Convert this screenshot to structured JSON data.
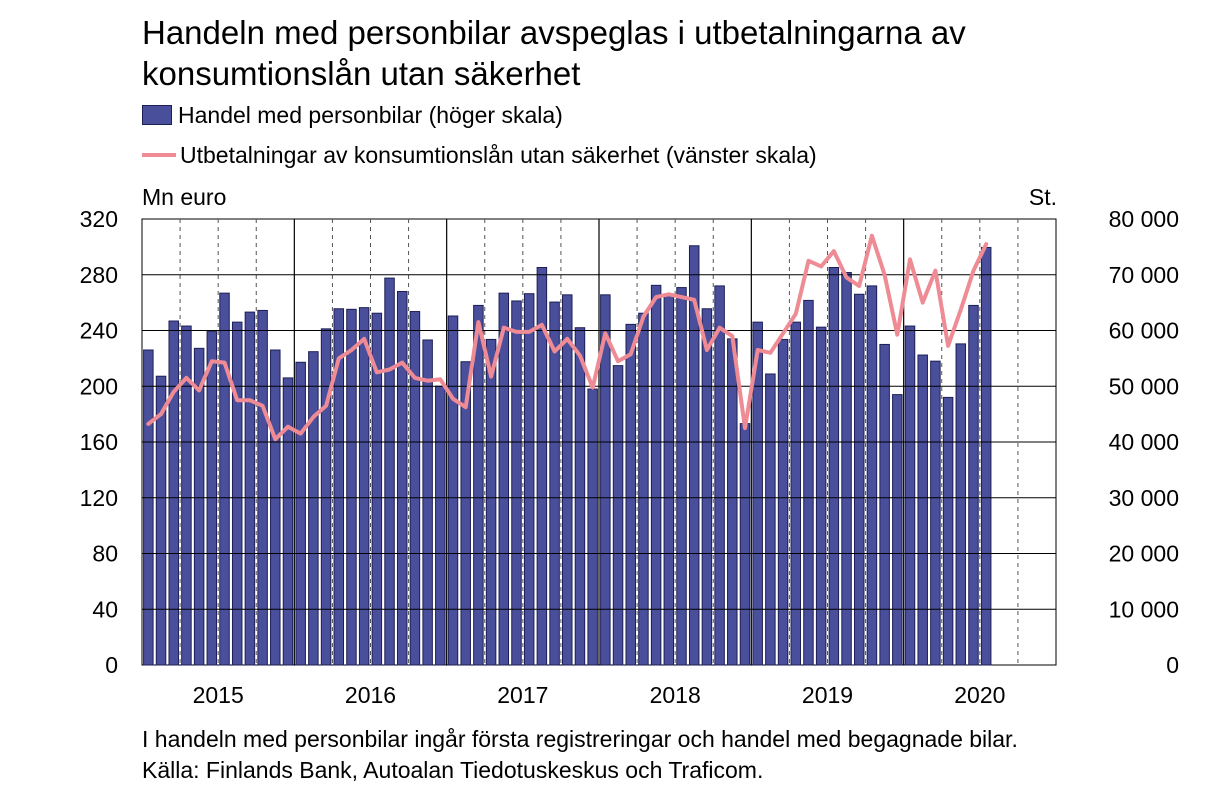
{
  "chart_data": {
    "type": "bar+line",
    "title": "Handeln med personbilar avspeglas i utbetalningarna av konsumtionslån utan säkerhet",
    "legend": [
      {
        "label": "Handel med personbilar (höger skala)",
        "marker": "bar",
        "color": "#4a4f9c"
      },
      {
        "label": "Utbetalningar av konsumtionslån utan säkerhet (vänster skala)",
        "marker": "line",
        "color": "#ef8b94"
      }
    ],
    "left_axis": {
      "unit": "Mn euro",
      "ylim": [
        0,
        320
      ],
      "ticks": [
        "0",
        "40",
        "80",
        "120",
        "160",
        "200",
        "240",
        "280",
        "320"
      ]
    },
    "right_axis": {
      "unit": "St.",
      "ylim": [
        0,
        80000
      ],
      "ticks": [
        "0",
        "10 000",
        "20 000",
        "30 000",
        "40 000",
        "50 000",
        "60 000",
        "70 000",
        "80 000"
      ]
    },
    "x_labels": [
      "2015",
      "2016",
      "2017",
      "2018",
      "2019",
      "2020"
    ],
    "x_range_months": "Jan 2015 – Dec 2020",
    "grid": "horizontal solid, yearly vertical solid, quarterly vertical dashed",
    "series": [
      {
        "name": "Handel med personbilar (höger skala)",
        "axis": "right",
        "type": "bar",
        "unit": "St.",
        "values": [
          56500,
          51800,
          61700,
          60800,
          56800,
          59800,
          66700,
          61500,
          63300,
          63600,
          56500,
          51500,
          54300,
          56200,
          60300,
          63900,
          63800,
          64100,
          63100,
          69400,
          67000,
          63400,
          58300,
          50000,
          62600,
          54400,
          64500,
          58400,
          66700,
          65300,
          66600,
          71300,
          65100,
          66400,
          60500,
          49500,
          66400,
          53700,
          61100,
          63100,
          68100,
          66300,
          67700,
          75200,
          63900,
          68000,
          58500,
          43300,
          61500,
          52200,
          58400,
          61500,
          65400,
          60600,
          71300,
          70400,
          66500,
          68000,
          57500,
          48500,
          60800,
          55600,
          54500,
          48000,
          57600,
          64500,
          74900
        ]
      },
      {
        "name": "Utbetalningar av konsumtionslån utan säkerhet (vänster skala)",
        "axis": "left",
        "type": "line",
        "unit": "Mn euro",
        "values": [
          173,
          180,
          196,
          206,
          197,
          218,
          217,
          190,
          190,
          186,
          162,
          171,
          166,
          178,
          186,
          220,
          226,
          234,
          210,
          212,
          217,
          206,
          204,
          205,
          191,
          185,
          246,
          207,
          242,
          239,
          239,
          244,
          225,
          234,
          222,
          199,
          238,
          218,
          223,
          250,
          264,
          266,
          264,
          262,
          226,
          242,
          236,
          170,
          226,
          224,
          238,
          252,
          290,
          286,
          297,
          278,
          272,
          308,
          280,
          237,
          291,
          260,
          283,
          229,
          255,
          283,
          302
        ]
      }
    ]
  },
  "footnote": {
    "line1": "I handeln med personbilar ingår första registreringar och handel med begagnade bilar.",
    "line2": "Källa: Finlands Bank, Autoalan Tiedotuskeskus och Traficom."
  }
}
